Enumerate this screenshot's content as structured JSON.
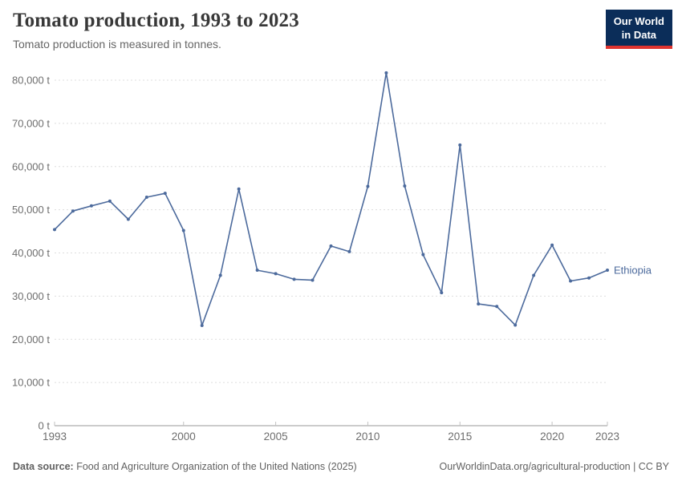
{
  "header": {
    "title": "Tomato production, 1993 to 2023",
    "subtitle": "Tomato production is measured in tonnes.",
    "logo_line1": "Our World",
    "logo_line2": "in Data"
  },
  "footer": {
    "source_label": "Data source:",
    "source_text": " Food and Agriculture Organization of the United Nations (2025)",
    "credit": "OurWorldinData.org/agricultural-production | CC BY"
  },
  "colors": {
    "series": "#4C6A9C",
    "grid": "#dddddd",
    "axis": "#999999",
    "tick": "#c2c2c2",
    "tick_label": "#6e6e6e",
    "logo_bg": "#0b2d59",
    "logo_red": "#e0342f"
  },
  "chart_data": {
    "type": "line",
    "title": "Tomato production, 1993 to 2023",
    "unit": "tonnes",
    "xlim": [
      1993,
      2023
    ],
    "ylim": [
      0,
      80000
    ],
    "grid": "horizontal-dashed",
    "legend_position": "end-of-line-label",
    "x_ticks": [
      1993,
      2000,
      2005,
      2010,
      2015,
      2020,
      2023
    ],
    "x_tick_labels": [
      "1993",
      "2000",
      "2005",
      "2010",
      "2015",
      "2020",
      "2023"
    ],
    "y_ticks": [
      0,
      10000,
      20000,
      30000,
      40000,
      50000,
      60000,
      70000,
      80000
    ],
    "y_tick_labels": [
      "0 t",
      "10,000 t",
      "20,000 t",
      "30,000 t",
      "40,000 t",
      "50,000 t",
      "60,000 t",
      "70,000 t",
      "80,000 t"
    ],
    "series": [
      {
        "name": "Ethiopia",
        "x": [
          1993,
          1994,
          1995,
          1996,
          1997,
          1998,
          1999,
          2000,
          2001,
          2002,
          2003,
          2004,
          2005,
          2006,
          2007,
          2008,
          2009,
          2010,
          2011,
          2012,
          2013,
          2014,
          2015,
          2016,
          2017,
          2018,
          2019,
          2020,
          2021,
          2022,
          2023
        ],
        "values": [
          45400,
          49700,
          50900,
          52000,
          47800,
          52900,
          53800,
          45200,
          23200,
          34800,
          54800,
          36000,
          35200,
          33900,
          33700,
          41600,
          40300,
          55400,
          81700,
          55500,
          39600,
          30800,
          65000,
          28200,
          27600,
          23300,
          34800,
          41800,
          33500,
          34200,
          36000
        ]
      }
    ]
  }
}
